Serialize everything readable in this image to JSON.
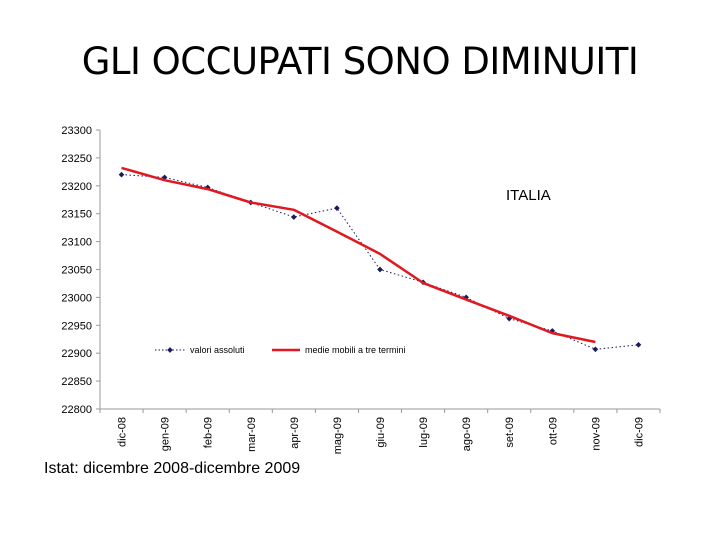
{
  "slide": {
    "title": "GLI OCCUPATI SONO DIMINUITI",
    "source": "Istat: dicembre 2008-dicembre 2009"
  },
  "chart_data": {
    "type": "line",
    "categories": [
      "dic-08",
      "gen-09",
      "feb-09",
      "mar-09",
      "apr-09",
      "mag-09",
      "giu-09",
      "lug-09",
      "ago-09",
      "set-09",
      "ott-09",
      "nov-09",
      "dic-09"
    ],
    "ylim": [
      22800,
      23300
    ],
    "yticks": [
      23300,
      23250,
      23200,
      23150,
      23100,
      23050,
      23000,
      22950,
      22900,
      22850,
      22800
    ],
    "annotation": "ITALIA",
    "legend_placement": "middle",
    "series": [
      {
        "name": "valori assoluti",
        "style": "dotted-markers",
        "color": "#1a1a5e",
        "values": [
          23220,
          23215,
          23197,
          23170,
          23144,
          23160,
          23050,
          23027,
          23000,
          22962,
          22940,
          22907,
          22915
        ]
      },
      {
        "name": "medie mobili a tre termini",
        "style": "solid",
        "color": "#e0181f",
        "values": [
          23232,
          23210,
          23194,
          23170,
          23157,
          23118,
          23078,
          23026,
          22996,
          22967,
          22936,
          22920,
          null
        ]
      }
    ]
  }
}
